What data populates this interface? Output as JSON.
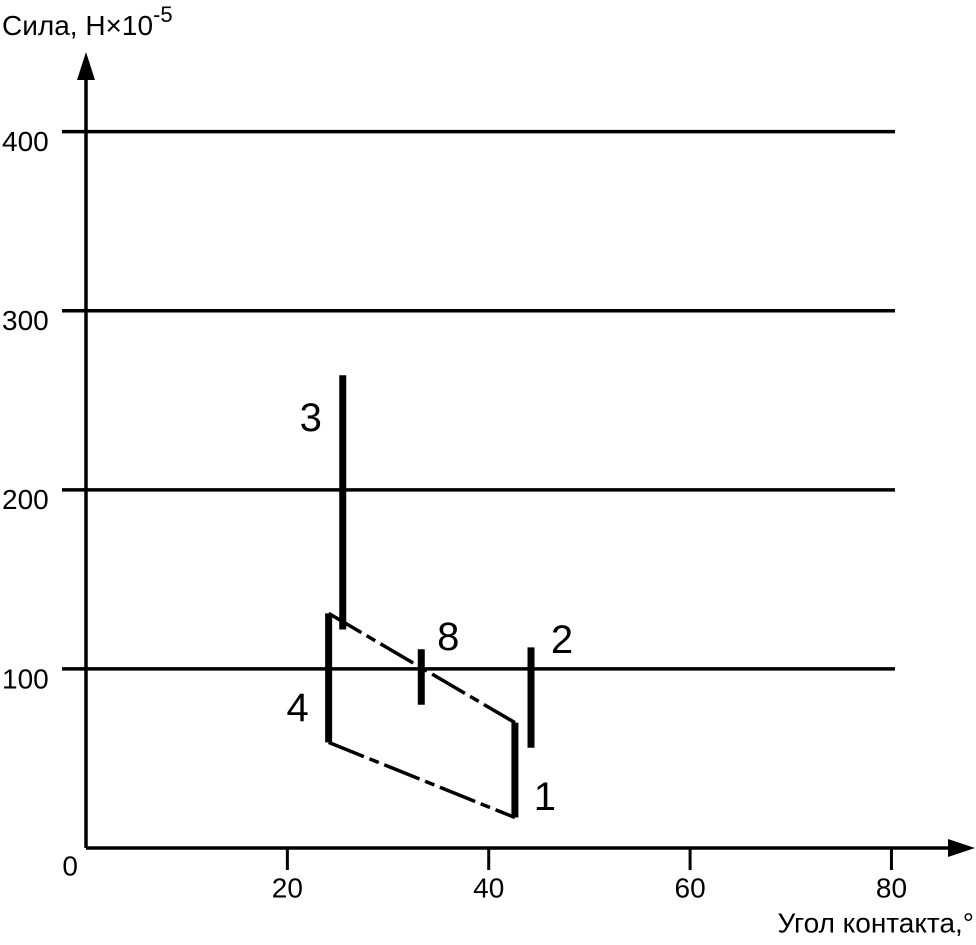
{
  "chart_data": {
    "type": "range",
    "ylabel": "Сила, Н×10",
    "ylabel_exponent": "-5",
    "xlabel": "Угол контакта,°",
    "xlim": [
      0,
      88
    ],
    "ylim": [
      0,
      440
    ],
    "xticks": [
      0,
      20,
      40,
      60,
      80
    ],
    "yticks": [
      100,
      200,
      300,
      400
    ],
    "grid": true,
    "color": "#000000",
    "series": [
      {
        "name": "1",
        "x": 42.6,
        "low": 17,
        "high": 70
      },
      {
        "name": "2",
        "x": 44.2,
        "low": 56,
        "high": 112
      },
      {
        "name": "3",
        "x": 25.5,
        "low": 122,
        "high": 264
      },
      {
        "name": "4",
        "x": 24.1,
        "low": 59,
        "high": 131
      },
      {
        "name": "8",
        "x": 33.3,
        "low": 80,
        "high": 111
      }
    ]
  }
}
